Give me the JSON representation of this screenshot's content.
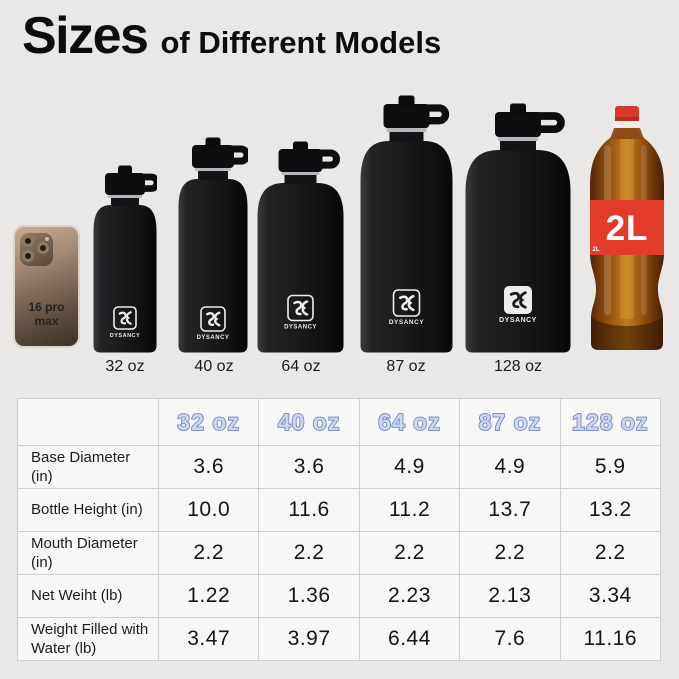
{
  "title": {
    "primary": "Sizes",
    "secondary": "of Different Models"
  },
  "brand": "DYSANCY",
  "products": [
    {
      "name": "iphone-16-pro-max",
      "screen_label": "16 pro max"
    },
    {
      "name": "bottle-32oz",
      "caption": "32 oz"
    },
    {
      "name": "bottle-40oz",
      "caption": "40 oz"
    },
    {
      "name": "bottle-64oz",
      "caption": "64 oz"
    },
    {
      "name": "bottle-87oz",
      "caption": "87 oz"
    },
    {
      "name": "bottle-128oz",
      "caption": "128 oz"
    },
    {
      "name": "cola-bottle-2l",
      "label": "2L"
    }
  ],
  "table": {
    "columns": [
      "32 oz",
      "40 oz",
      "64 oz",
      "87 oz",
      "128 oz"
    ],
    "rows": [
      {
        "label": "Base Diameter (in)",
        "values": [
          "3.6",
          "3.6",
          "4.9",
          "4.9",
          "5.9"
        ]
      },
      {
        "label": "Bottle Height (in)",
        "values": [
          "10.0",
          "11.6",
          "11.2",
          "13.7",
          "13.2"
        ]
      },
      {
        "label": "Mouth Diameter (in)",
        "values": [
          "2.2",
          "2.2",
          "2.2",
          "2.2",
          "2.2"
        ]
      },
      {
        "label": "Net Weiht (lb)",
        "values": [
          "1.22",
          "1.36",
          "2.23",
          "2.13",
          "3.34"
        ]
      },
      {
        "label": "Weight Filled with Water (lb)",
        "values": [
          "3.47",
          "3.97",
          "6.44",
          "7.6",
          "11.16"
        ]
      }
    ]
  },
  "chart_data": {
    "type": "table",
    "title": "Sizes of Different Models",
    "columns": [
      "32 oz",
      "40 oz",
      "64 oz",
      "87 oz",
      "128 oz"
    ],
    "rows": [
      {
        "label": "Base Diameter (in)",
        "values": [
          3.6,
          3.6,
          4.9,
          4.9,
          5.9
        ]
      },
      {
        "label": "Bottle Height (in)",
        "values": [
          10.0,
          11.6,
          11.2,
          13.7,
          13.2
        ]
      },
      {
        "label": "Mouth Diameter (in)",
        "values": [
          2.2,
          2.2,
          2.2,
          2.2,
          2.2
        ]
      },
      {
        "label": "Net Weiht (lb)",
        "values": [
          1.22,
          1.36,
          2.23,
          2.13,
          3.34
        ]
      },
      {
        "label": "Weight Filled with Water (lb)",
        "values": [
          3.47,
          3.97,
          6.44,
          7.6,
          11.16
        ]
      }
    ]
  },
  "colors": {
    "background": "#e9e8e6",
    "table_cell_background": "#f7f7f6",
    "table_border": "#cfcfce",
    "header_fill": "#ccd6f1",
    "header_outline": "#7183c2",
    "bottle_black": "#1b1b1d",
    "cola_red": "#e03b2a",
    "title_text": "#0d0d0d"
  }
}
